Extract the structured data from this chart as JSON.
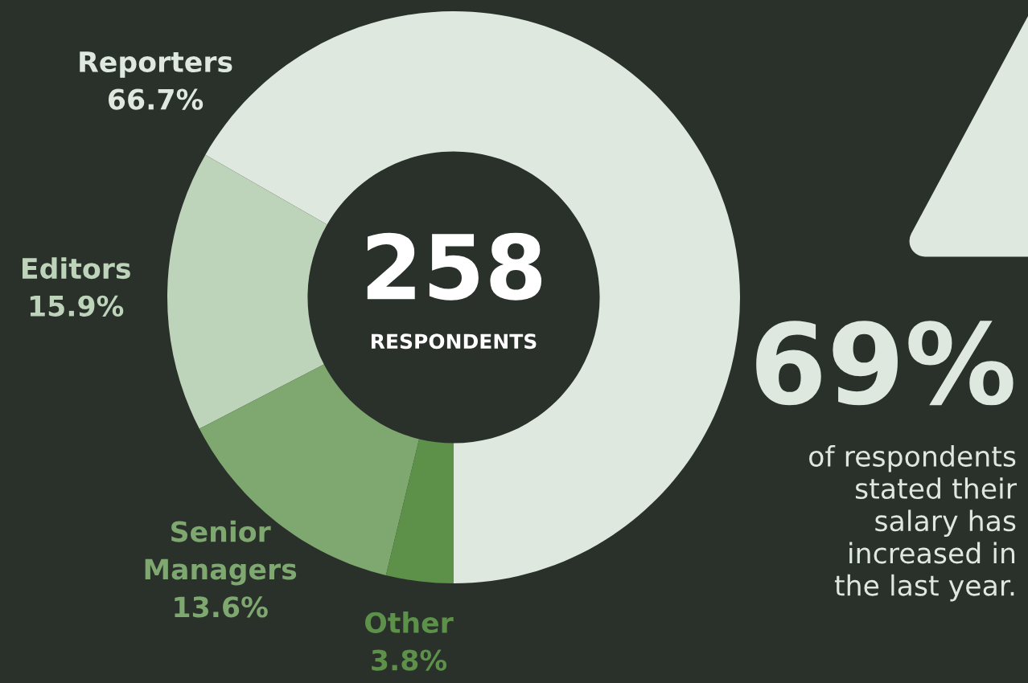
{
  "chart_data": {
    "type": "donut",
    "categories": [
      "Reporters",
      "Editors",
      "Senior\nManagers",
      "Other"
    ],
    "values": [
      66.7,
      15.9,
      13.6,
      3.8
    ],
    "value_labels": [
      "66.7%",
      "15.9%",
      "13.6%",
      "3.8%"
    ],
    "colors": [
      "#dfe8de",
      "#bed4ba",
      "#7ea86f",
      "#5d914a"
    ],
    "annotations": [
      "258",
      "RESPONDENTS",
      "69%",
      "of respondents\nstated their\nsalary has\nincreased in\nthe last year."
    ],
    "legend": false
  }
}
